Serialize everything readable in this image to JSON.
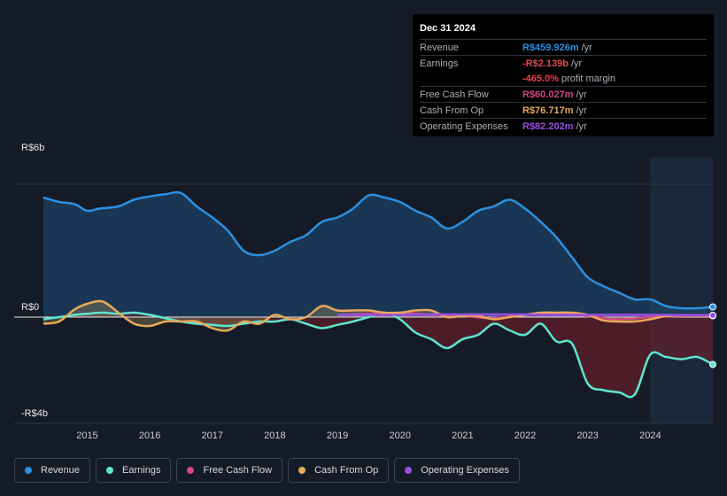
{
  "tooltip": {
    "date": "Dec 31 2024",
    "rows": [
      {
        "label": "Revenue",
        "value": "R$459.926m",
        "unit": "/yr",
        "color": "#2c8fe0"
      },
      {
        "label": "Earnings",
        "value": "-R$2.139b",
        "unit": "/yr",
        "color": "#e8434a"
      },
      {
        "label": "",
        "value": "-465.0%",
        "unit": "profit margin",
        "color": "#e8434a"
      },
      {
        "label": "Free Cash Flow",
        "value": "R$60.027m",
        "unit": "/yr",
        "color": "#d04a85"
      },
      {
        "label": "Cash From Op",
        "value": "R$76.717m",
        "unit": "/yr",
        "color": "#e8a95a"
      },
      {
        "label": "Operating Expenses",
        "value": "R$82.202m",
        "unit": "/yr",
        "color": "#9b4fe0"
      }
    ]
  },
  "legend": [
    {
      "label": "Revenue",
      "color": "#2c8fe0"
    },
    {
      "label": "Earnings",
      "color": "#5ee6cf"
    },
    {
      "label": "Free Cash Flow",
      "color": "#d04a85"
    },
    {
      "label": "Cash From Op",
      "color": "#e8a95a"
    },
    {
      "label": "Operating Expenses",
      "color": "#9b4fe0"
    }
  ],
  "chart_data": {
    "type": "area",
    "title": "",
    "xlabel": "",
    "ylabel": "",
    "y_tick_labels": [
      "R$6b",
      "R$0",
      "-R$4b"
    ],
    "ylim": [
      -4,
      6
    ],
    "xlim": [
      2014.3,
      2025.0
    ],
    "x_ticks": [
      2015,
      2016,
      2017,
      2018,
      2019,
      2020,
      2021,
      2022,
      2023,
      2024
    ],
    "forecast_start": 2024.0,
    "series": [
      {
        "name": "Revenue",
        "color": "#2c8fe0",
        "x": [
          2014.3,
          2014.55,
          2014.8,
          2015.0,
          2015.2,
          2015.5,
          2015.75,
          2016.0,
          2016.25,
          2016.5,
          2016.75,
          2017.0,
          2017.25,
          2017.5,
          2017.75,
          2018.0,
          2018.25,
          2018.5,
          2018.75,
          2019.0,
          2019.25,
          2019.5,
          2019.75,
          2020.0,
          2020.25,
          2020.5,
          2020.75,
          2021.0,
          2021.25,
          2021.5,
          2021.75,
          2022.0,
          2022.25,
          2022.5,
          2022.75,
          2023.0,
          2023.25,
          2023.5,
          2023.75,
          2024.0,
          2024.25,
          2024.5,
          2024.75,
          2025.0
        ],
        "values": [
          5.4,
          5.2,
          5.1,
          4.8,
          4.9,
          5.0,
          5.3,
          5.45,
          5.55,
          5.6,
          5.0,
          4.5,
          3.9,
          3.0,
          2.8,
          3.0,
          3.4,
          3.7,
          4.3,
          4.5,
          4.9,
          5.5,
          5.4,
          5.2,
          4.8,
          4.5,
          4.0,
          4.3,
          4.8,
          5.0,
          5.3,
          4.9,
          4.3,
          3.6,
          2.7,
          1.8,
          1.4,
          1.1,
          0.8,
          0.8,
          0.5,
          0.4,
          0.4,
          0.46
        ]
      },
      {
        "name": "Earnings",
        "color": "#5ee6cf",
        "x": [
          2014.3,
          2014.55,
          2014.8,
          2015.0,
          2015.25,
          2015.5,
          2015.75,
          2016.0,
          2016.25,
          2016.5,
          2016.75,
          2017.0,
          2017.25,
          2017.5,
          2017.75,
          2018.0,
          2018.25,
          2018.5,
          2018.75,
          2019.0,
          2019.25,
          2019.5,
          2019.75,
          2020.0,
          2020.25,
          2020.5,
          2020.75,
          2021.0,
          2021.25,
          2021.5,
          2021.75,
          2022.0,
          2022.25,
          2022.5,
          2022.75,
          2023.0,
          2023.25,
          2023.5,
          2023.75,
          2024.0,
          2024.25,
          2024.5,
          2024.75,
          2025.0
        ],
        "values": [
          -0.1,
          0.0,
          0.1,
          0.15,
          0.2,
          0.15,
          0.2,
          0.1,
          -0.05,
          -0.2,
          -0.3,
          -0.35,
          -0.4,
          -0.3,
          -0.2,
          -0.2,
          -0.1,
          -0.3,
          -0.5,
          -0.35,
          -0.2,
          0.0,
          0.2,
          -0.1,
          -0.7,
          -1.0,
          -1.4,
          -1.0,
          -0.8,
          -0.3,
          -0.6,
          -0.8,
          -0.3,
          -1.1,
          -1.2,
          -3.0,
          -3.3,
          -3.4,
          -3.5,
          -1.7,
          -1.8,
          -1.9,
          -1.8,
          -2.14
        ]
      },
      {
        "name": "Free Cash Flow",
        "color": "#d04a85",
        "x": [
          2019.0,
          2019.5,
          2020.0,
          2020.5,
          2021.0,
          2021.5,
          2022.0,
          2022.5,
          2023.0,
          2023.5,
          2024.0,
          2024.5,
          2025.0
        ],
        "values": [
          0.1,
          0.15,
          0.2,
          0.1,
          0.05,
          -0.05,
          0.1,
          0.15,
          0.05,
          -0.1,
          0.0,
          0.05,
          0.06
        ]
      },
      {
        "name": "Cash From Op",
        "color": "#e8a95a",
        "x": [
          2014.3,
          2014.55,
          2014.8,
          2015.0,
          2015.25,
          2015.5,
          2015.75,
          2016.0,
          2016.25,
          2016.5,
          2016.75,
          2017.0,
          2017.25,
          2017.5,
          2017.75,
          2018.0,
          2018.25,
          2018.5,
          2018.75,
          2019.0,
          2019.25,
          2019.5,
          2019.75,
          2020.0,
          2020.25,
          2020.5,
          2020.75,
          2021.0,
          2021.25,
          2021.5,
          2021.75,
          2022.0,
          2022.25,
          2022.5,
          2022.75,
          2023.0,
          2023.25,
          2023.5,
          2023.75,
          2024.0,
          2024.25,
          2024.5,
          2024.75,
          2025.0
        ],
        "values": [
          -0.3,
          -0.2,
          0.35,
          0.6,
          0.7,
          0.2,
          -0.3,
          -0.4,
          -0.2,
          -0.2,
          -0.2,
          -0.5,
          -0.6,
          -0.2,
          -0.3,
          0.1,
          -0.1,
          0.0,
          0.5,
          0.3,
          0.3,
          0.3,
          0.2,
          0.2,
          0.3,
          0.3,
          0.0,
          0.05,
          0.05,
          -0.1,
          0.0,
          0.1,
          0.2,
          0.2,
          0.2,
          0.1,
          -0.15,
          -0.2,
          -0.2,
          -0.1,
          0.05,
          0.08,
          0.08,
          0.077
        ]
      },
      {
        "name": "Operating Expenses",
        "color": "#9b4fe0",
        "x": [
          2019.0,
          2019.5,
          2020.0,
          2020.5,
          2021.0,
          2021.5,
          2022.0,
          2022.5,
          2023.0,
          2023.5,
          2024.0,
          2024.5,
          2025.0
        ],
        "values": [
          0.1,
          0.1,
          0.1,
          0.12,
          0.12,
          0.12,
          0.12,
          0.1,
          0.1,
          0.1,
          0.1,
          0.09,
          0.082
        ]
      }
    ]
  }
}
